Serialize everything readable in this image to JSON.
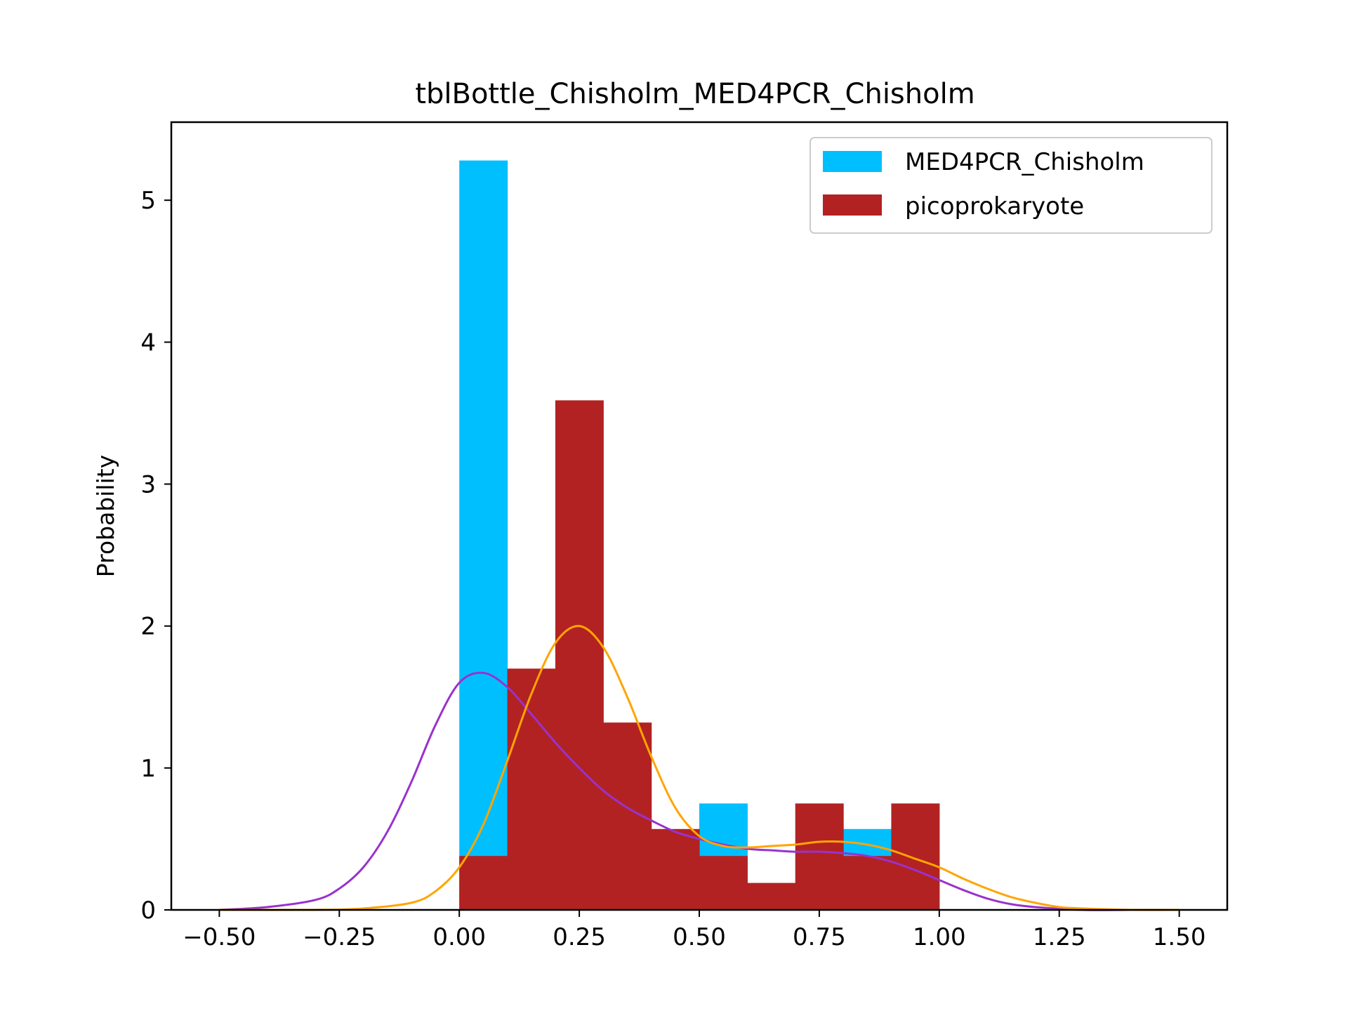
{
  "chart_data": {
    "type": "bar",
    "title": "tblBottle_Chisholm_MED4PCR_Chisholm",
    "xlabel": "",
    "ylabel": "Probability",
    "xlim": [
      -0.6,
      1.6
    ],
    "ylim": [
      0,
      5.55
    ],
    "xticks": [
      -0.5,
      -0.25,
      0.0,
      0.25,
      0.5,
      0.75,
      1.0,
      1.25,
      1.5
    ],
    "xtick_labels": [
      "−0.50",
      "−0.25",
      "0.00",
      "0.25",
      "0.50",
      "0.75",
      "1.00",
      "1.25",
      "1.50"
    ],
    "yticks": [
      0,
      1,
      2,
      3,
      4,
      5
    ],
    "ytick_labels": [
      "0",
      "1",
      "2",
      "3",
      "4",
      "5"
    ],
    "grid": false,
    "legend_position": "top-right",
    "bin_edges": [
      0.0,
      0.1,
      0.2,
      0.3,
      0.4,
      0.5,
      0.6,
      0.7,
      0.8,
      0.9,
      1.0
    ],
    "series": [
      {
        "name": "MED4PCR_Chisholm",
        "color": "#00bfff",
        "values": [
          5.28,
          0.0,
          0.0,
          0.0,
          0.0,
          0.75,
          0.0,
          0.0,
          0.57,
          0.0
        ]
      },
      {
        "name": "picoprokaryote",
        "color": "#b22222",
        "values": [
          0.38,
          1.7,
          3.59,
          1.32,
          0.57,
          0.38,
          0.19,
          0.75,
          0.38,
          0.75
        ]
      }
    ],
    "density_curves": [
      {
        "color": "#9932cc",
        "x": [
          -0.5,
          -0.4,
          -0.3,
          -0.25,
          -0.2,
          -0.15,
          -0.1,
          -0.05,
          0.0,
          0.05,
          0.1,
          0.15,
          0.2,
          0.25,
          0.3,
          0.35,
          0.4,
          0.45,
          0.5,
          0.55,
          0.6,
          0.65,
          0.7,
          0.75,
          0.8,
          0.85,
          0.9,
          0.95,
          1.0,
          1.05,
          1.1,
          1.15,
          1.2,
          1.3,
          1.4,
          1.5
        ],
        "y": [
          0.0,
          0.02,
          0.07,
          0.15,
          0.3,
          0.55,
          0.9,
          1.3,
          1.6,
          1.67,
          1.57,
          1.38,
          1.18,
          1.0,
          0.84,
          0.72,
          0.63,
          0.55,
          0.5,
          0.46,
          0.43,
          0.42,
          0.41,
          0.41,
          0.4,
          0.38,
          0.34,
          0.28,
          0.21,
          0.14,
          0.08,
          0.04,
          0.02,
          0.0,
          0.0,
          0.0
        ]
      },
      {
        "color": "#ffa500",
        "x": [
          -0.5,
          -0.3,
          -0.2,
          -0.1,
          -0.05,
          0.0,
          0.05,
          0.1,
          0.15,
          0.2,
          0.25,
          0.3,
          0.35,
          0.4,
          0.45,
          0.5,
          0.55,
          0.6,
          0.65,
          0.7,
          0.75,
          0.8,
          0.85,
          0.9,
          0.95,
          1.0,
          1.05,
          1.1,
          1.15,
          1.2,
          1.25,
          1.3,
          1.4,
          1.5
        ],
        "y": [
          0.0,
          0.0,
          0.01,
          0.05,
          0.13,
          0.3,
          0.6,
          1.05,
          1.52,
          1.88,
          2.0,
          1.85,
          1.5,
          1.08,
          0.72,
          0.52,
          0.45,
          0.44,
          0.45,
          0.46,
          0.48,
          0.48,
          0.46,
          0.42,
          0.36,
          0.3,
          0.22,
          0.15,
          0.09,
          0.05,
          0.02,
          0.01,
          0.0,
          0.0
        ]
      }
    ]
  }
}
